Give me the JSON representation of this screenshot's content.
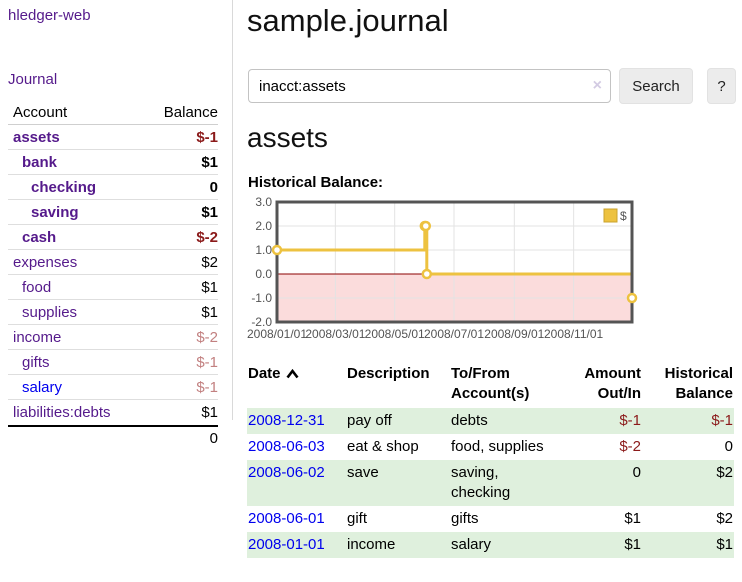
{
  "app": {
    "title": "hledger-web",
    "journal_link": "Journal"
  },
  "sidebar": {
    "accounts_header": {
      "account": "Account",
      "balance": "Balance"
    },
    "accounts": [
      {
        "name": "assets",
        "indent": 0,
        "bold": true,
        "color": "purple",
        "balance": "$-1",
        "balance_style": "neg-strong"
      },
      {
        "name": "bank",
        "indent": 1,
        "bold": true,
        "color": "purple",
        "balance": "$1",
        "balance_style": "pos"
      },
      {
        "name": "checking",
        "indent": 2,
        "bold": true,
        "color": "purple",
        "balance": "0",
        "balance_style": "pos"
      },
      {
        "name": "saving",
        "indent": 2,
        "bold": true,
        "color": "purple",
        "balance": "$1",
        "balance_style": "pos"
      },
      {
        "name": "cash",
        "indent": 1,
        "bold": true,
        "color": "purple",
        "balance": "$-2",
        "balance_style": "neg-strong"
      },
      {
        "name": "expenses",
        "indent": 0,
        "bold": false,
        "color": "purple",
        "balance": "$2",
        "balance_style": "pos"
      },
      {
        "name": "food",
        "indent": 1,
        "bold": false,
        "color": "purple",
        "balance": "$1",
        "balance_style": "pos"
      },
      {
        "name": "supplies",
        "indent": 1,
        "bold": false,
        "color": "purple",
        "balance": "$1",
        "balance_style": "pos"
      },
      {
        "name": "income",
        "indent": 0,
        "bold": false,
        "color": "purple",
        "balance": "$-2",
        "balance_style": "neg-muted"
      },
      {
        "name": "gifts",
        "indent": 1,
        "bold": false,
        "color": "purple",
        "balance": "$-1",
        "balance_style": "neg-muted"
      },
      {
        "name": "salary",
        "indent": 1,
        "bold": false,
        "color": "blue",
        "balance": "$-1",
        "balance_style": "neg-muted"
      },
      {
        "name": "liabilities:debts",
        "indent": 0,
        "bold": false,
        "color": "purple",
        "balance": "$1",
        "balance_style": "pos"
      }
    ],
    "total": "0"
  },
  "main": {
    "title": "sample.journal",
    "search": {
      "value": "inacct:assets",
      "clear_icon": "×",
      "search_label": "Search",
      "help_label": "?"
    },
    "account_heading": "assets",
    "chart_label": "Historical Balance:"
  },
  "chart_data": {
    "type": "line",
    "step": true,
    "title": "Historical Balance:",
    "legend": "$",
    "legend_position": "top-right",
    "grid": true,
    "xlim": [
      "2008-01-01",
      "2008-12-31"
    ],
    "ylim": [
      -2,
      3
    ],
    "x_ticks": [
      {
        "date": "2008-01-01",
        "label": "2008/01/01"
      },
      {
        "date": "2008-03-01",
        "label": "2008/03/01"
      },
      {
        "date": "2008-05-01",
        "label": "2008/05/01"
      },
      {
        "date": "2008-07-01",
        "label": "2008/07/01"
      },
      {
        "date": "2008-09-01",
        "label": "2008/09/01"
      },
      {
        "date": "2008-11-01",
        "label": "2008/11/01"
      }
    ],
    "y_ticks": [
      {
        "value": 3,
        "label": "3.0"
      },
      {
        "value": 2,
        "label": "2.0"
      },
      {
        "value": 1,
        "label": "1.0"
      },
      {
        "value": 0,
        "label": "0.0"
      },
      {
        "value": -1,
        "label": "-1.0"
      },
      {
        "value": -2,
        "label": "-2.0"
      }
    ],
    "series": [
      {
        "name": "$",
        "color": "#edc240",
        "points": [
          {
            "date": "2008-01-01",
            "value": 1
          },
          {
            "date": "2008-06-01",
            "value": 2
          },
          {
            "date": "2008-06-02",
            "value": 2
          },
          {
            "date": "2008-06-03",
            "value": 0
          },
          {
            "date": "2008-12-31",
            "value": -1
          }
        ]
      }
    ],
    "colors": {
      "line": "#edc240",
      "legend_box_border": "#caa32c",
      "negative_region": "#fbdcdc",
      "zero_line": "#8b0000",
      "gridline": "#e3e3e3",
      "border": "#545454"
    }
  },
  "transactions": {
    "headers": [
      {
        "label": "Date",
        "sort": "asc"
      },
      {
        "label": "Description"
      },
      {
        "label": "To/From Account(s)"
      },
      {
        "label": "Amount Out/In",
        "align": "right"
      },
      {
        "label": "Historical Balance",
        "align": "right"
      }
    ],
    "rows": [
      {
        "date": "2008-12-31",
        "description": "pay off",
        "accounts": "debts",
        "amount": "$-1",
        "amount_neg": true,
        "balance": "$-1",
        "balance_neg": true
      },
      {
        "date": "2008-06-03",
        "description": "eat & shop",
        "accounts": "food, supplies",
        "amount": "$-2",
        "amount_neg": true,
        "balance": "0",
        "balance_neg": false
      },
      {
        "date": "2008-06-02",
        "description": "save",
        "accounts": "saving, checking",
        "amount": "0",
        "amount_neg": false,
        "balance": "$2",
        "balance_neg": false
      },
      {
        "date": "2008-06-01",
        "description": "gift",
        "accounts": "gifts",
        "amount": "$1",
        "amount_neg": false,
        "balance": "$2",
        "balance_neg": false
      },
      {
        "date": "2008-01-01",
        "description": "income",
        "accounts": "salary",
        "amount": "$1",
        "amount_neg": false,
        "balance": "$1",
        "balance_neg": false
      }
    ]
  },
  "colors": {
    "link_purple": "#551a8b",
    "link_blue": "#0000ee",
    "negative_strong": "#8b1a1a",
    "negative_muted": "#c28080",
    "row_green": "#dff0dd",
    "button_bg": "#ececec"
  }
}
